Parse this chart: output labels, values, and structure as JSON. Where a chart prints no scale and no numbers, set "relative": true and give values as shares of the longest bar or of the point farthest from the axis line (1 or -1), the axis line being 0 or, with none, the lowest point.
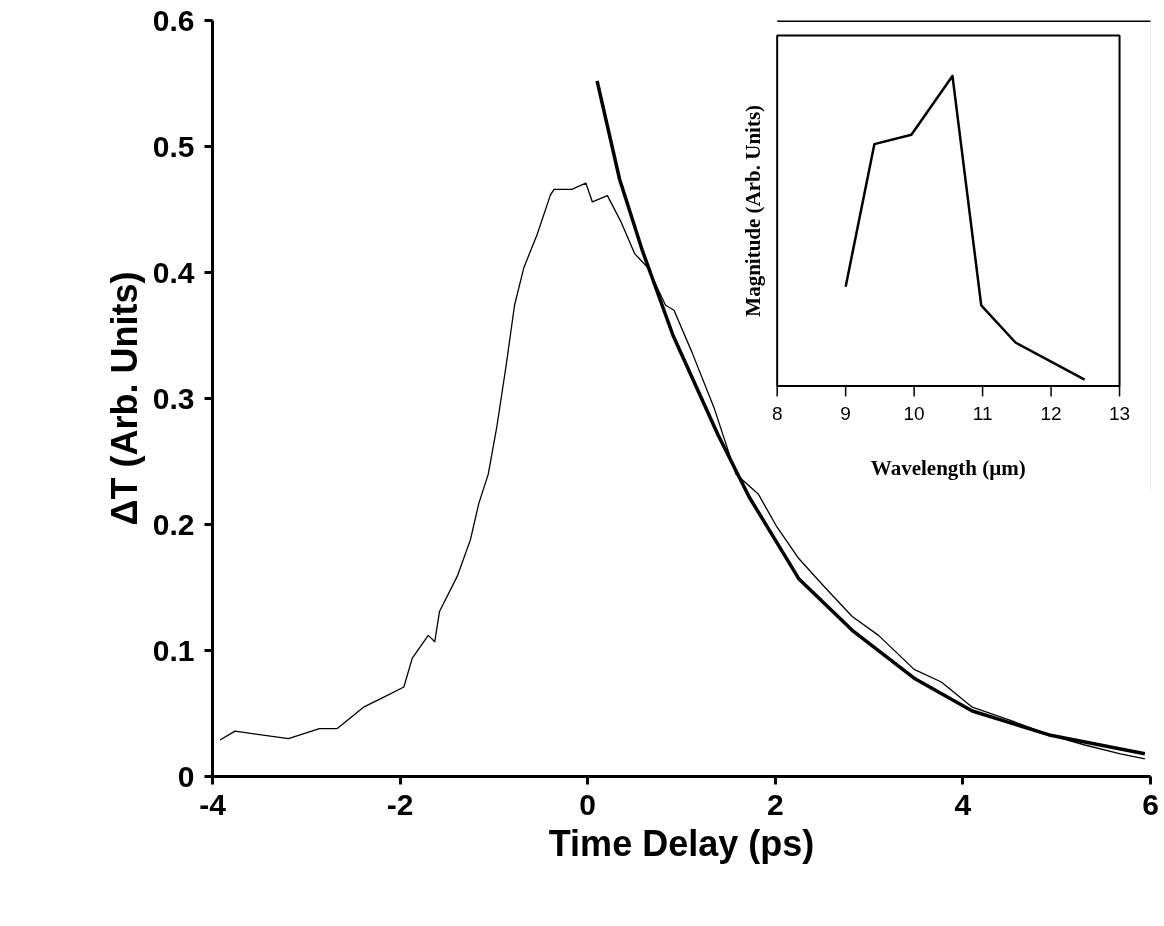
{
  "chart_data": [
    {
      "type": "line",
      "xlabel": "Time Delay (ps)",
      "ylabel": "ΔT (Arb. Units)",
      "xlim": [
        -4,
        6
      ],
      "ylim": [
        0,
        0.6
      ],
      "xticks": [
        -4,
        -2,
        0,
        2,
        4,
        6
      ],
      "yticks": [
        0,
        0.1,
        0.2,
        0.3,
        0.4,
        0.5,
        0.6
      ],
      "grid": false,
      "marker": "none",
      "line_style": "solid",
      "series": [
        {
          "color": "#000000",
          "x": [
            -3.92,
            -3.76,
            -3.19,
            -2.86,
            -2.67,
            -2.39,
            -2.2,
            -1.96,
            -1.87,
            -1.7,
            -1.63,
            -1.58,
            -1.39,
            -1.25,
            -1.16,
            -1.06,
            -0.97,
            -0.87,
            -0.78,
            -0.68,
            -0.54,
            -0.4,
            -0.36,
            -0.17,
            -0.02,
            0.05,
            0.21,
            0.35,
            0.5,
            0.64,
            0.83,
            0.92,
            1.11,
            1.35,
            1.58,
            1.82,
            2.01,
            2.25,
            2.53,
            2.82,
            3.1,
            3.48,
            3.77,
            4.1,
            4.53,
            4.92,
            5.3,
            5.68,
            5.94
          ],
          "values": [
            0.029,
            0.036,
            0.03,
            0.038,
            0.038,
            0.055,
            0.062,
            0.071,
            0.094,
            0.112,
            0.107,
            0.131,
            0.159,
            0.188,
            0.217,
            0.24,
            0.277,
            0.326,
            0.374,
            0.404,
            0.43,
            0.461,
            0.466,
            0.466,
            0.471,
            0.456,
            0.461,
            0.441,
            0.415,
            0.404,
            0.374,
            0.37,
            0.337,
            0.292,
            0.24,
            0.224,
            0.199,
            0.173,
            0.15,
            0.127,
            0.112,
            0.085,
            0.075,
            0.055,
            0.044,
            0.033,
            0.025,
            0.018,
            0.014
          ]
        },
        {
          "color": "#000000",
          "x": [
            0.1,
            0.34,
            0.58,
            0.91,
            1.39,
            1.72,
            2.25,
            2.82,
            3.48,
            4.1,
            4.92,
            5.94
          ],
          "values": [
            0.552,
            0.474,
            0.418,
            0.35,
            0.271,
            0.222,
            0.157,
            0.116,
            0.078,
            0.052,
            0.033,
            0.018
          ]
        }
      ]
    },
    {
      "type": "line",
      "relative": true,
      "xlabel": "Wavelength (µm)",
      "ylabel": "Magnitude (Arb. Units)",
      "xlim": [
        8,
        13
      ],
      "xticks": [
        8,
        9,
        10,
        11,
        12,
        13
      ],
      "marker": "none",
      "series": [
        {
          "color": "#000000",
          "x": [
            9.0,
            9.42,
            9.96,
            10.56,
            10.98,
            11.48,
            12.49
          ],
          "values": [
            0.32,
            0.78,
            0.81,
            1.0,
            0.26,
            0.14,
            0.02
          ]
        }
      ]
    }
  ]
}
